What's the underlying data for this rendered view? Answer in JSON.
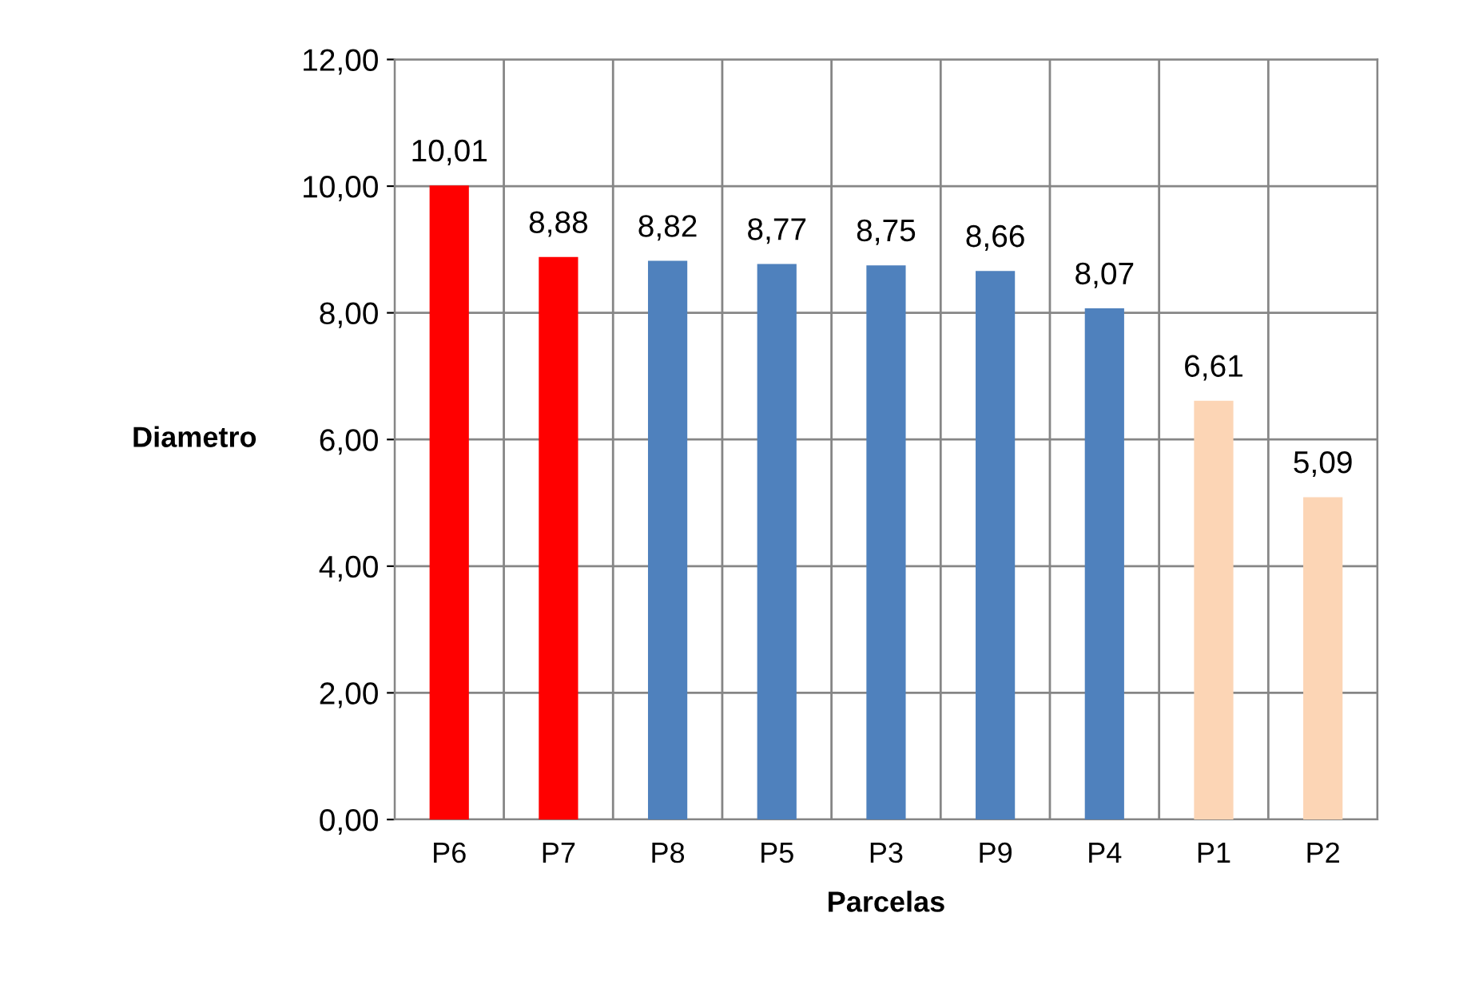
{
  "chart_data": {
    "type": "bar",
    "categories": [
      "P6",
      "P7",
      "P8",
      "P5",
      "P3",
      "P9",
      "P4",
      "P1",
      "P2"
    ],
    "values": [
      10.01,
      8.88,
      8.82,
      8.77,
      8.75,
      8.66,
      8.07,
      6.61,
      5.09
    ],
    "colors": [
      "#ff0000",
      "#ff0000",
      "#4f81bd",
      "#4f81bd",
      "#4f81bd",
      "#4f81bd",
      "#4f81bd",
      "#fcd5b5",
      "#fcd5b5"
    ],
    "value_labels": [
      "10,01",
      "8,88",
      "8,82",
      "8,77",
      "8,75",
      "8,66",
      "8,07",
      "6,61",
      "5,09"
    ],
    "xlabel": "Parcelas",
    "ylabel": "Diametro",
    "ylim": [
      0,
      12
    ],
    "yticks": [
      {
        "value": 0,
        "label": "0,00"
      },
      {
        "value": 2,
        "label": "2,00"
      },
      {
        "value": 4,
        "label": "4,00"
      },
      {
        "value": 6,
        "label": "6,00"
      },
      {
        "value": 8,
        "label": "8,00"
      },
      {
        "value": 10,
        "label": "10,00"
      },
      {
        "value": 12,
        "label": "12,00"
      }
    ],
    "grid": true
  }
}
